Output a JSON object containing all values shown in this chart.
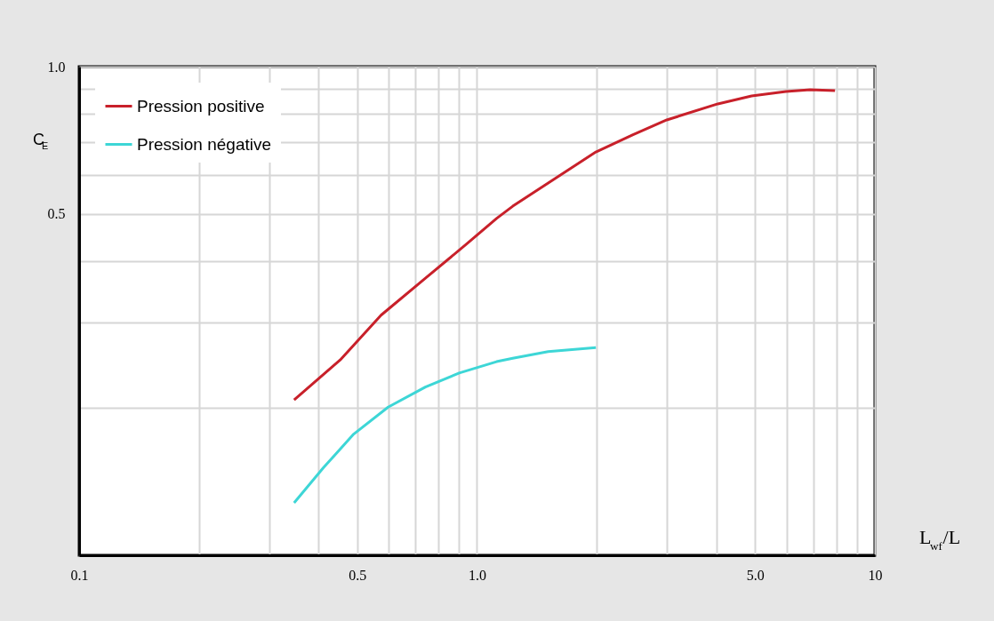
{
  "chart_data": {
    "type": "line",
    "xlabel": "L$_{wf}$/L",
    "ylabel": "C$_{E}$",
    "log": "xy",
    "grid": true,
    "legend": "top left",
    "line_style": "solid",
    "marker": "none",
    "xlim": [
      0.1,
      10
    ],
    "ylim": [
      0.1,
      1.0
    ],
    "xticks": [
      0.1,
      {
        "value": 0.2,
        "label": null
      },
      {
        "value": 0.3,
        "label": null
      },
      {
        "value": 0.4,
        "label": null
      },
      0.5,
      {
        "value": 0.6,
        "label": null
      },
      {
        "value": 0.7,
        "label": null
      },
      {
        "value": 0.8,
        "label": null
      },
      {
        "value": 0.9,
        "label": null
      },
      {
        "value": 1,
        "label": "1.0"
      },
      {
        "value": 2,
        "label": null
      },
      {
        "value": 3,
        "label": null
      },
      {
        "value": 4,
        "label": null
      },
      {
        "value": 5,
        "label": "5.0"
      },
      {
        "value": 6,
        "label": null
      },
      {
        "value": 7,
        "label": null
      },
      {
        "value": 8,
        "label": null
      },
      {
        "value": 9,
        "label": null
      },
      10
    ],
    "yticks": [
      {
        "value": 0.2,
        "label": null
      },
      {
        "value": 0.3,
        "label": null
      },
      {
        "value": 0.4,
        "label": null
      },
      0.5,
      {
        "value": 0.6,
        "label": null
      },
      {
        "value": 0.7,
        "label": null
      },
      {
        "value": 0.8,
        "label": null
      },
      {
        "value": 0.9,
        "label": null
      },
      {
        "value": 1.0,
        "label": "1.0"
      }
    ],
    "series": [
      {
        "name": "Pression  positive",
        "color": "#c8202a",
        "x": [
          0.347,
          0.453,
          0.574,
          0.742,
          0.94,
          1.12,
          1.23,
          1.51,
          1.99,
          2.46,
          3.0,
          4.03,
          4.9,
          5.98,
          6.87,
          7.94
        ],
        "values": [
          0.208,
          0.251,
          0.31,
          0.369,
          0.433,
          0.489,
          0.518,
          0.578,
          0.669,
          0.725,
          0.778,
          0.839,
          0.871,
          0.889,
          0.897,
          0.893
        ]
      },
      {
        "name": "Pression négative",
        "color": "#3dd6d6",
        "x": [
          0.347,
          0.411,
          0.49,
          0.598,
          0.742,
          0.902,
          1.12,
          1.23,
          1.51,
          1.99
        ],
        "values": [
          0.128,
          0.151,
          0.177,
          0.201,
          0.221,
          0.236,
          0.249,
          0.253,
          0.261,
          0.266
        ]
      }
    ]
  }
}
